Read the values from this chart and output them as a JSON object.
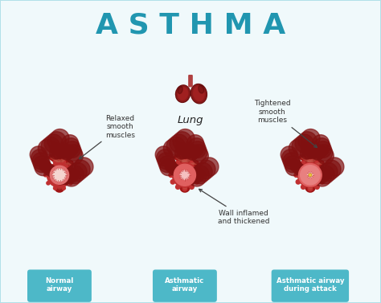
{
  "title": "ASTHMA",
  "title_color": "#2196b0",
  "title_fontsize": 26,
  "bg_color": "#b2e0e8",
  "inner_bg_color": "#f0f9fb",
  "border_color": "#5bc8d8",
  "lung_label": "Lung",
  "labels_bottom": [
    "Normal\nairway",
    "Asthmatic\nairway",
    "Asthmatic airway\nduring attack"
  ],
  "label_bg_color": "#4db8c8",
  "label_text_color": "#ffffff",
  "annotation_relaxed": "Relaxed\nsmooth\nmuscles",
  "annotation_tightened": "Tightened\nsmooth\nmuscles",
  "annotation_wall": "Wall inflamed\nand thickened",
  "annotation_color": "#333333",
  "bronchi_color": "#8b1010",
  "branch_color": "#a01515"
}
